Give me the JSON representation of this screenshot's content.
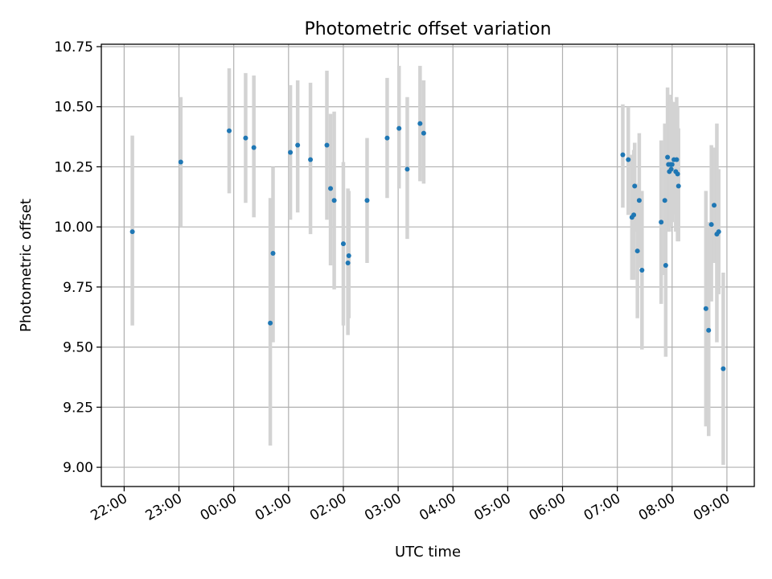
{
  "chart_data": {
    "type": "scatter",
    "title": "Photometric offset variation",
    "xlabel": "UTC time",
    "ylabel": "Photometric offset",
    "grid": true,
    "x_unit": "UTC time (hh:mm; times after midnight on the following day)",
    "xlim": [
      "21:35",
      "09:30"
    ],
    "ylim": [
      8.92,
      10.76
    ],
    "xticks": [
      "22:00",
      "23:00",
      "00:00",
      "01:00",
      "02:00",
      "03:00",
      "04:00",
      "05:00",
      "06:00",
      "07:00",
      "08:00",
      "09:00"
    ],
    "yticks": [
      "9.00",
      "9.25",
      "9.50",
      "9.75",
      "10.00",
      "10.25",
      "10.50",
      "10.75"
    ],
    "colors": {
      "point": "#1f77b4",
      "errorbar": "#d3d3d3"
    },
    "series": [
      {
        "points": [
          {
            "x": "22:09",
            "y": 9.98,
            "low": 9.59,
            "high": 10.38
          },
          {
            "x": "23:02",
            "y": 10.27,
            "low": 10.0,
            "high": 10.54
          },
          {
            "x": "23:55",
            "y": 10.4,
            "low": 10.14,
            "high": 10.66
          },
          {
            "x": "00:13",
            "y": 10.37,
            "low": 10.1,
            "high": 10.64
          },
          {
            "x": "00:22",
            "y": 10.33,
            "low": 10.04,
            "high": 10.63
          },
          {
            "x": "00:40",
            "y": 9.6,
            "low": 9.09,
            "high": 10.12
          },
          {
            "x": "00:43",
            "y": 9.89,
            "low": 9.52,
            "high": 10.25
          },
          {
            "x": "01:02",
            "y": 10.31,
            "low": 10.03,
            "high": 10.59
          },
          {
            "x": "01:10",
            "y": 10.34,
            "low": 10.06,
            "high": 10.61
          },
          {
            "x": "01:24",
            "y": 10.28,
            "low": 9.97,
            "high": 10.6
          },
          {
            "x": "01:42",
            "y": 10.34,
            "low": 10.03,
            "high": 10.65
          },
          {
            "x": "01:46",
            "y": 10.16,
            "low": 9.84,
            "high": 10.47
          },
          {
            "x": "01:50",
            "y": 10.11,
            "low": 9.74,
            "high": 10.48
          },
          {
            "x": "02:00",
            "y": 9.93,
            "low": 9.59,
            "high": 10.27
          },
          {
            "x": "02:05",
            "y": 9.85,
            "low": 9.55,
            "high": 10.16
          },
          {
            "x": "02:06",
            "y": 9.88,
            "low": 9.62,
            "high": 10.15
          },
          {
            "x": "02:26",
            "y": 10.11,
            "low": 9.85,
            "high": 10.37
          },
          {
            "x": "02:48",
            "y": 10.37,
            "low": 10.12,
            "high": 10.62
          },
          {
            "x": "03:01",
            "y": 10.41,
            "low": 10.16,
            "high": 10.67
          },
          {
            "x": "03:10",
            "y": 10.24,
            "low": 9.95,
            "high": 10.54
          },
          {
            "x": "03:24",
            "y": 10.43,
            "low": 10.19,
            "high": 10.67
          },
          {
            "x": "03:28",
            "y": 10.39,
            "low": 10.18,
            "high": 10.61
          },
          {
            "x": "07:06",
            "y": 10.3,
            "low": 10.08,
            "high": 10.51
          },
          {
            "x": "07:12",
            "y": 10.28,
            "low": 10.05,
            "high": 10.5
          },
          {
            "x": "07:16",
            "y": 10.04,
            "low": 9.78,
            "high": 10.3
          },
          {
            "x": "07:18",
            "y": 10.05,
            "low": 9.78,
            "high": 10.32
          },
          {
            "x": "07:19",
            "y": 10.17,
            "low": 9.98,
            "high": 10.35
          },
          {
            "x": "07:22",
            "y": 9.9,
            "low": 9.62,
            "high": 10.18
          },
          {
            "x": "07:24",
            "y": 10.11,
            "low": 9.83,
            "high": 10.39
          },
          {
            "x": "07:27",
            "y": 9.82,
            "low": 9.49,
            "high": 10.15
          },
          {
            "x": "07:48",
            "y": 10.02,
            "low": 9.68,
            "high": 10.36
          },
          {
            "x": "07:52",
            "y": 10.11,
            "low": 9.8,
            "high": 10.43
          },
          {
            "x": "07:53",
            "y": 9.84,
            "low": 9.46,
            "high": 10.22
          },
          {
            "x": "07:55",
            "y": 10.29,
            "low": 10.0,
            "high": 10.58
          },
          {
            "x": "07:56",
            "y": 10.26,
            "low": 9.98,
            "high": 10.54
          },
          {
            "x": "07:57",
            "y": 10.23,
            "low": 9.98,
            "high": 10.52
          },
          {
            "x": "07:58",
            "y": 10.26,
            "low": 10.0,
            "high": 10.55
          },
          {
            "x": "07:59",
            "y": 10.24,
            "low": 10.0,
            "high": 10.53
          },
          {
            "x": "08:00",
            "y": 10.26,
            "low": 10.02,
            "high": 10.52
          },
          {
            "x": "08:02",
            "y": 10.28,
            "low": 10.05,
            "high": 10.52
          },
          {
            "x": "08:04",
            "y": 10.23,
            "low": 9.98,
            "high": 10.48
          },
          {
            "x": "08:05",
            "y": 10.28,
            "low": 10.0,
            "high": 10.54
          },
          {
            "x": "08:06",
            "y": 10.22,
            "low": 9.94,
            "high": 10.5
          },
          {
            "x": "08:07",
            "y": 10.17,
            "low": 9.94,
            "high": 10.41
          },
          {
            "x": "08:37",
            "y": 9.66,
            "low": 9.17,
            "high": 10.15
          },
          {
            "x": "08:40",
            "y": 9.57,
            "low": 9.13,
            "high": 10.02
          },
          {
            "x": "08:43",
            "y": 10.01,
            "low": 9.69,
            "high": 10.34
          },
          {
            "x": "08:46",
            "y": 10.09,
            "low": 9.85,
            "high": 10.33
          },
          {
            "x": "08:49",
            "y": 9.97,
            "low": 9.52,
            "high": 10.43
          },
          {
            "x": "08:51",
            "y": 9.98,
            "low": 9.72,
            "high": 10.24
          },
          {
            "x": "08:56",
            "y": 9.41,
            "low": 9.01,
            "high": 9.81
          }
        ]
      }
    ]
  }
}
